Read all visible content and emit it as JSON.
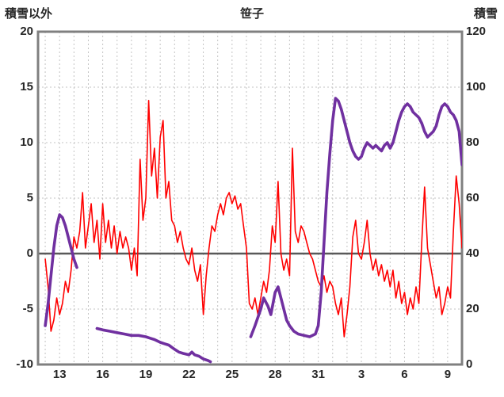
{
  "colors": {
    "background": "#FFFFFF",
    "border": "#808080",
    "grid": "#C3C3C3",
    "zero_line": "#595959",
    "text": "#262626",
    "red_series": "#FF0000",
    "purple_series": "#7030A0"
  },
  "chart_data": {
    "type": "line",
    "title": "笹子",
    "left_axis": {
      "label": "積雪以外",
      "min": -10,
      "max": 20,
      "ticks": [
        20,
        15,
        10,
        5,
        0,
        -5,
        -10
      ]
    },
    "right_axis": {
      "label": "積雪",
      "min": 0,
      "max": 120,
      "ticks": [
        120,
        100,
        80,
        60,
        40,
        20,
        0
      ]
    },
    "x_domain": [
      11.5,
      41
    ],
    "x_minor_grid_step": 1,
    "x_ticks": [
      {
        "x": 13,
        "label": "13"
      },
      {
        "x": 16,
        "label": "16"
      },
      {
        "x": 19,
        "label": "19"
      },
      {
        "x": 22,
        "label": "22"
      },
      {
        "x": 25,
        "label": "25"
      },
      {
        "x": 28,
        "label": "28"
      },
      {
        "x": 31,
        "label": "31"
      },
      {
        "x": 34,
        "label": "3"
      },
      {
        "x": 37,
        "label": "6"
      },
      {
        "x": 40,
        "label": "9"
      }
    ],
    "grid": {
      "horizontal": "dashed",
      "vertical": "dashed",
      "zero_line": true
    },
    "legend": "none",
    "series": [
      {
        "name": "積雪以外",
        "axis": "left",
        "color": "#FF0000",
        "width": 1.6,
        "segments": [
          [
            [
              12,
              -0.5
            ],
            [
              12.2,
              -3
            ],
            [
              12.4,
              -7
            ],
            [
              12.6,
              -6
            ],
            [
              12.8,
              -4
            ],
            [
              13,
              -5.5
            ],
            [
              13.2,
              -4.5
            ],
            [
              13.4,
              -2.5
            ],
            [
              13.6,
              -3.5
            ],
            [
              13.8,
              -1.5
            ],
            [
              14,
              1.5
            ],
            [
              14.2,
              0.5
            ],
            [
              14.4,
              2
            ],
            [
              14.6,
              5.5
            ],
            [
              14.8,
              0.5
            ],
            [
              15,
              2.5
            ],
            [
              15.2,
              4.5
            ],
            [
              15.4,
              1
            ],
            [
              15.6,
              3
            ],
            [
              15.8,
              -0.5
            ],
            [
              16,
              4.5
            ],
            [
              16.2,
              1
            ],
            [
              16.4,
              3
            ],
            [
              16.6,
              0.5
            ],
            [
              16.8,
              2.5
            ],
            [
              17,
              0
            ],
            [
              17.2,
              2
            ],
            [
              17.4,
              0.5
            ],
            [
              17.6,
              1.5
            ],
            [
              17.8,
              0.5
            ],
            [
              18,
              -1.5
            ],
            [
              18.2,
              0.5
            ],
            [
              18.4,
              -2
            ],
            [
              18.6,
              8.5
            ],
            [
              18.8,
              3
            ],
            [
              19,
              5
            ],
            [
              19.2,
              13.8
            ],
            [
              19.4,
              7
            ],
            [
              19.6,
              9.5
            ],
            [
              19.8,
              5
            ],
            [
              20,
              10.5
            ],
            [
              20.2,
              12
            ],
            [
              20.4,
              5
            ],
            [
              20.6,
              6.5
            ],
            [
              20.8,
              3
            ],
            [
              21,
              2.5
            ],
            [
              21.2,
              1
            ],
            [
              21.4,
              2
            ],
            [
              21.6,
              0.5
            ],
            [
              21.8,
              -0.5
            ],
            [
              22,
              -1
            ],
            [
              22.2,
              0.5
            ],
            [
              22.4,
              -1.5
            ],
            [
              22.6,
              -2.5
            ],
            [
              22.8,
              -1
            ],
            [
              23,
              -5.5
            ],
            [
              23.2,
              -2
            ],
            [
              23.4,
              0.5
            ],
            [
              23.6,
              2.5
            ],
            [
              23.8,
              2
            ],
            [
              24,
              3.5
            ],
            [
              24.2,
              4.5
            ],
            [
              24.4,
              3.5
            ],
            [
              24.6,
              5
            ],
            [
              24.8,
              5.5
            ],
            [
              25,
              4.5
            ],
            [
              25.2,
              5.2
            ],
            [
              25.4,
              4
            ],
            [
              25.6,
              4.5
            ],
            [
              25.8,
              2.5
            ],
            [
              26,
              0.5
            ],
            [
              26.2,
              -4.5
            ],
            [
              26.4,
              -5
            ],
            [
              26.6,
              -4
            ],
            [
              26.8,
              -5.5
            ],
            [
              27,
              -4
            ],
            [
              27.2,
              -2.5
            ],
            [
              27.4,
              -3.5
            ],
            [
              27.6,
              -1.5
            ],
            [
              27.8,
              2.5
            ],
            [
              28,
              1
            ],
            [
              28.2,
              6.5
            ],
            [
              28.4,
              0
            ],
            [
              28.6,
              -1.5
            ],
            [
              28.8,
              -0.5
            ],
            [
              29,
              -2
            ],
            [
              29.2,
              9.5
            ],
            [
              29.4,
              2
            ],
            [
              29.6,
              1
            ],
            [
              29.8,
              2.5
            ],
            [
              30,
              2
            ],
            [
              30.2,
              1
            ],
            [
              30.4,
              0
            ],
            [
              30.6,
              -0.5
            ],
            [
              30.8,
              -1.5
            ],
            [
              31,
              -2.5
            ],
            [
              31.2,
              -3
            ],
            [
              31.4,
              -2
            ],
            [
              31.6,
              -3.5
            ],
            [
              31.8,
              -2.5
            ],
            [
              32,
              -3
            ],
            [
              32.2,
              -4.5
            ],
            [
              32.4,
              -5.5
            ],
            [
              32.6,
              -4
            ],
            [
              32.8,
              -7.5
            ],
            [
              33,
              -5.5
            ],
            [
              33.2,
              -3
            ],
            [
              33.4,
              1.5
            ],
            [
              33.6,
              3
            ],
            [
              33.8,
              0
            ],
            [
              34,
              -0.5
            ],
            [
              34.2,
              1
            ],
            [
              34.4,
              3
            ],
            [
              34.6,
              0
            ],
            [
              34.8,
              -1.5
            ],
            [
              35,
              -0.5
            ],
            [
              35.2,
              -2
            ],
            [
              35.4,
              -1
            ],
            [
              35.6,
              -2.5
            ],
            [
              35.8,
              -1.5
            ],
            [
              36,
              -3
            ],
            [
              36.2,
              -1.5
            ],
            [
              36.4,
              -4
            ],
            [
              36.6,
              -2.5
            ],
            [
              36.8,
              -4.5
            ],
            [
              37,
              -3.5
            ],
            [
              37.2,
              -5.5
            ],
            [
              37.4,
              -4
            ],
            [
              37.6,
              -5
            ],
            [
              37.8,
              -3
            ],
            [
              38,
              -4.5
            ],
            [
              38.2,
              1
            ],
            [
              38.4,
              6
            ],
            [
              38.6,
              0.5
            ],
            [
              38.8,
              -1
            ],
            [
              39,
              -2.5
            ],
            [
              39.2,
              -4
            ],
            [
              39.4,
              -3
            ],
            [
              39.6,
              -5.5
            ],
            [
              39.8,
              -4.5
            ],
            [
              40,
              -3
            ],
            [
              40.2,
              -4
            ],
            [
              40.4,
              2
            ],
            [
              40.6,
              7
            ],
            [
              40.8,
              4.5
            ],
            [
              41,
              0.5
            ]
          ]
        ]
      },
      {
        "name": "積雪",
        "axis": "right",
        "color": "#7030A0",
        "width": 3.6,
        "segments": [
          [
            [
              12,
              14
            ],
            [
              12.2,
              22
            ],
            [
              12.4,
              32
            ],
            [
              12.6,
              42
            ],
            [
              12.8,
              50
            ],
            [
              13,
              54
            ],
            [
              13.2,
              53
            ],
            [
              13.4,
              50
            ],
            [
              13.6,
              46
            ],
            [
              13.8,
              42
            ],
            [
              14,
              38
            ],
            [
              14.2,
              35
            ]
          ],
          [
            [
              15.6,
              13
            ],
            [
              16,
              12.5
            ],
            [
              16.5,
              12
            ],
            [
              17,
              11.5
            ],
            [
              17.5,
              11
            ],
            [
              18,
              10.5
            ],
            [
              18.5,
              10.5
            ],
            [
              19,
              10
            ],
            [
              19.3,
              9.5
            ],
            [
              19.6,
              9
            ],
            [
              20,
              8
            ],
            [
              20.3,
              7.5
            ],
            [
              20.6,
              7
            ],
            [
              21,
              5.5
            ],
            [
              21.3,
              4.5
            ],
            [
              21.6,
              4
            ],
            [
              22,
              3.5
            ],
            [
              22.2,
              4.5
            ],
            [
              22.4,
              3.5
            ],
            [
              22.7,
              3
            ],
            [
              23,
              2
            ],
            [
              23.3,
              1.5
            ],
            [
              23.5,
              1
            ]
          ],
          [
            [
              26.3,
              10
            ],
            [
              26.6,
              14
            ],
            [
              27,
              20
            ],
            [
              27.2,
              24
            ],
            [
              27.5,
              21
            ],
            [
              27.7,
              18
            ],
            [
              28,
              26
            ],
            [
              28.2,
              28
            ],
            [
              28.4,
              24
            ],
            [
              28.6,
              20
            ],
            [
              28.8,
              16
            ],
            [
              29,
              14
            ],
            [
              29.3,
              12
            ],
            [
              29.6,
              11
            ],
            [
              30,
              10.5
            ],
            [
              30.4,
              10
            ],
            [
              30.8,
              11
            ],
            [
              31,
              14
            ],
            [
              31.2,
              26
            ],
            [
              31.4,
              44
            ],
            [
              31.6,
              62
            ],
            [
              31.8,
              76
            ],
            [
              32,
              88
            ],
            [
              32.2,
              96
            ],
            [
              32.4,
              95
            ],
            [
              32.6,
              92
            ],
            [
              32.8,
              88
            ],
            [
              33,
              84
            ],
            [
              33.2,
              80
            ],
            [
              33.4,
              77
            ],
            [
              33.6,
              75
            ],
            [
              33.8,
              74
            ],
            [
              34,
              75
            ],
            [
              34.2,
              78
            ],
            [
              34.4,
              80
            ],
            [
              34.6,
              79
            ],
            [
              34.8,
              78
            ],
            [
              35,
              79
            ],
            [
              35.2,
              78
            ],
            [
              35.4,
              77
            ],
            [
              35.6,
              79
            ],
            [
              35.8,
              80
            ],
            [
              36,
              78
            ],
            [
              36.2,
              80
            ],
            [
              36.4,
              84
            ],
            [
              36.6,
              88
            ],
            [
              36.8,
              91
            ],
            [
              37,
              93
            ],
            [
              37.2,
              94
            ],
            [
              37.4,
              93
            ],
            [
              37.6,
              91
            ],
            [
              37.8,
              90
            ],
            [
              38,
              89
            ],
            [
              38.2,
              87
            ],
            [
              38.4,
              84
            ],
            [
              38.6,
              82
            ],
            [
              38.8,
              83
            ],
            [
              39,
              84
            ],
            [
              39.2,
              86
            ],
            [
              39.4,
              90
            ],
            [
              39.6,
              93
            ],
            [
              39.8,
              94
            ],
            [
              40,
              93
            ],
            [
              40.2,
              91
            ],
            [
              40.4,
              90
            ],
            [
              40.6,
              88
            ],
            [
              40.8,
              84
            ],
            [
              41,
              72
            ]
          ]
        ]
      }
    ]
  }
}
